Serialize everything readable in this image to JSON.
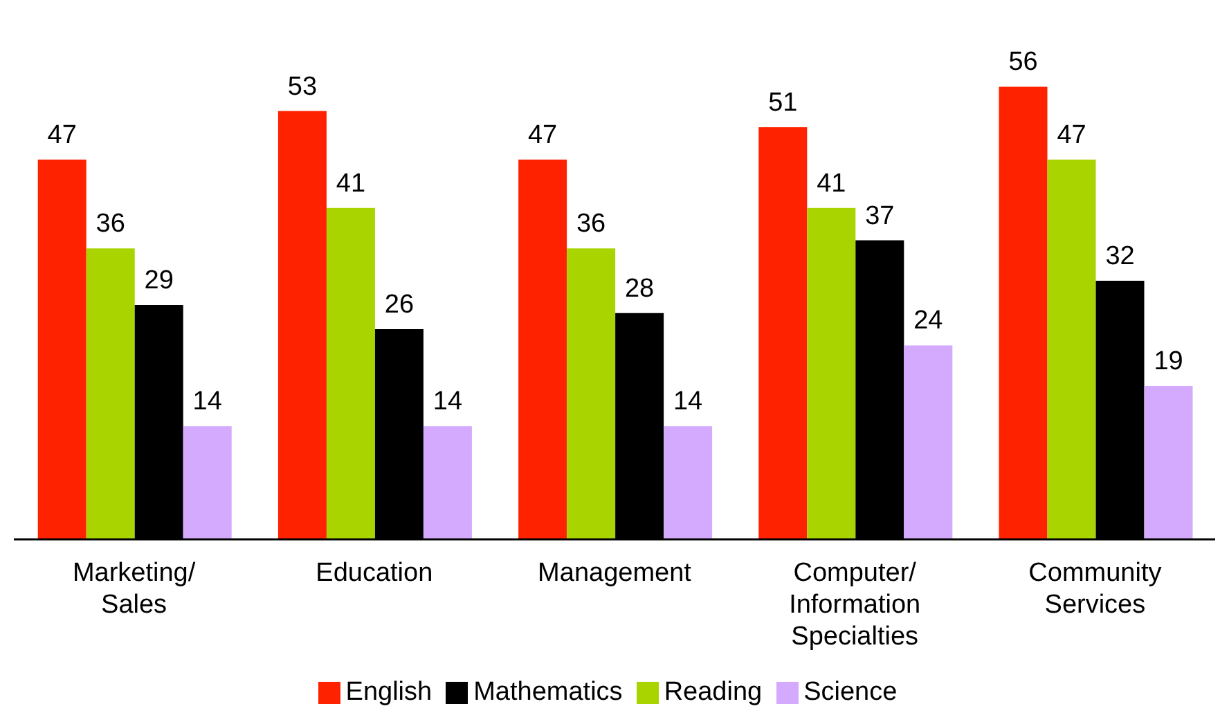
{
  "chart_data": {
    "type": "bar",
    "categories": [
      "Marketing/Sales",
      "Education",
      "Management",
      "Computer/Information Specialties",
      "Community Services"
    ],
    "series": [
      {
        "name": "English",
        "color": "#ff2200",
        "values": [
          47,
          53,
          47,
          51,
          56
        ]
      },
      {
        "name": "Reading",
        "color": "#aad400",
        "values": [
          36,
          41,
          36,
          41,
          47
        ]
      },
      {
        "name": "Mathematics",
        "color": "#000000",
        "values": [
          29,
          26,
          28,
          37,
          32
        ]
      },
      {
        "name": "Science",
        "color": "#d4aaff",
        "values": [
          14,
          14,
          14,
          24,
          19
        ]
      }
    ],
    "data_labels": true,
    "legend": "bottom",
    "grid": false
  }
}
